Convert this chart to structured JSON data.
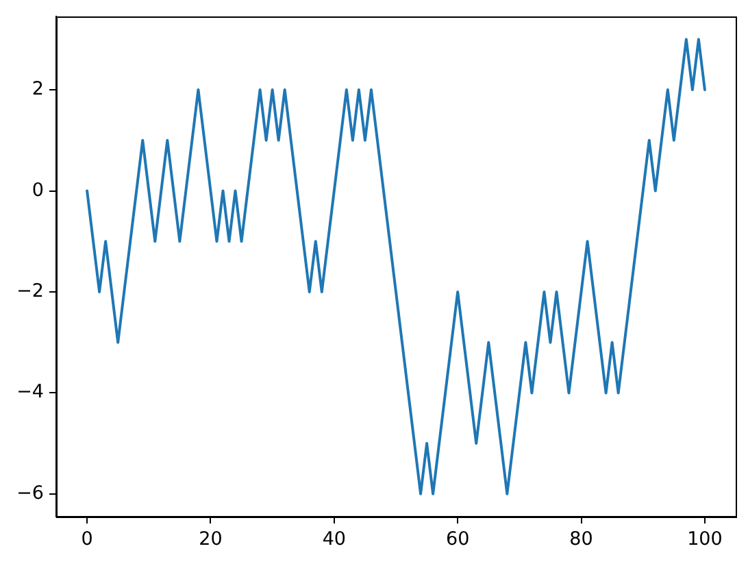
{
  "chart_data": {
    "type": "line",
    "x": [
      0,
      1,
      2,
      3,
      4,
      5,
      6,
      7,
      8,
      9,
      10,
      11,
      12,
      13,
      14,
      15,
      16,
      17,
      18,
      19,
      20,
      21,
      22,
      23,
      24,
      25,
      26,
      27,
      28,
      29,
      30,
      31,
      32,
      33,
      34,
      35,
      36,
      37,
      38,
      39,
      40,
      41,
      42,
      43,
      44,
      45,
      46,
      47,
      48,
      49,
      50,
      51,
      52,
      53,
      54,
      55,
      56,
      57,
      58,
      59,
      60,
      61,
      62,
      63,
      64,
      65,
      66,
      67,
      68,
      69,
      70,
      71,
      72,
      73,
      74,
      75,
      76,
      77,
      78,
      79,
      80,
      81,
      82,
      83,
      84,
      85,
      86,
      87,
      88,
      89,
      90,
      91,
      92,
      93,
      94,
      95,
      96,
      97,
      98,
      99,
      100
    ],
    "series": [
      {
        "color": "#1f77b4",
        "values": [
          0,
          -1,
          -2,
          -1,
          -2,
          -3,
          -2,
          -1,
          0,
          1,
          0,
          -1,
          0,
          1,
          0,
          -1,
          0,
          1,
          2,
          1,
          0,
          -1,
          0,
          -1,
          0,
          -1,
          0,
          1,
          2,
          1,
          2,
          1,
          2,
          1,
          0,
          -1,
          -2,
          -1,
          -2,
          -1,
          0,
          1,
          2,
          1,
          2,
          1,
          2,
          1,
          0,
          -1,
          -2,
          -3,
          -4,
          -5,
          -6,
          -5,
          -6,
          -5,
          -4,
          -3,
          -2,
          -3,
          -4,
          -5,
          -4,
          -3,
          -4,
          -5,
          -6,
          -5,
          -4,
          -3,
          -4,
          -3,
          -2,
          -3,
          -2,
          -3,
          -4,
          -3,
          -2,
          -1,
          -2,
          -3,
          -4,
          -3,
          -4,
          -3,
          -2,
          -1,
          0,
          1,
          0,
          1,
          2,
          1,
          2,
          3,
          2,
          3,
          2
        ]
      }
    ],
    "xlim": [
      -5,
      105
    ],
    "xticks": [
      0,
      20,
      40,
      60,
      80,
      100
    ],
    "ylim": [
      -6.45,
      3.45
    ],
    "yticks": [
      -6,
      -4,
      -2,
      0,
      2
    ],
    "marker": "none",
    "line_style": "solid",
    "legend": false,
    "grid": false
  }
}
